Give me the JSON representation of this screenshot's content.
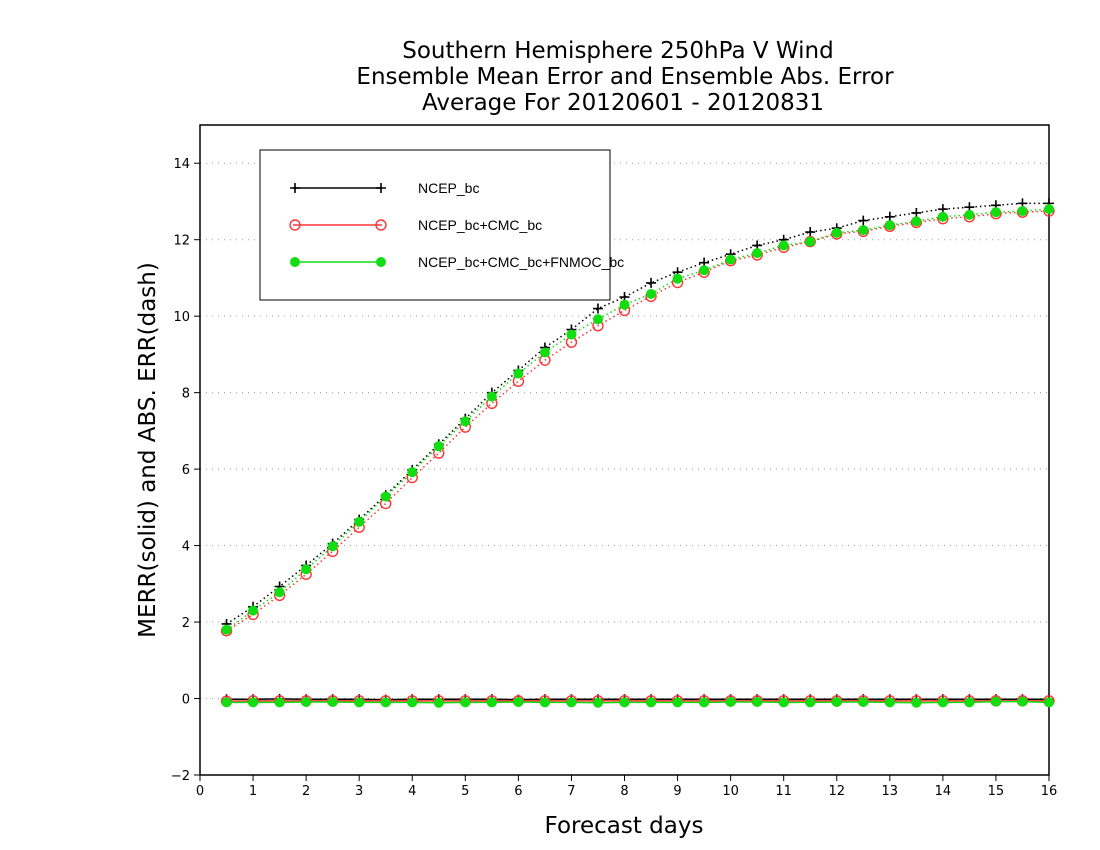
{
  "chart_data": {
    "type": "line",
    "title_lines": [
      "Southern Hemisphere 250hPa V Wind",
      "Ensemble Mean Error and Ensemble Abs. Error",
      "Average For 20120601 - 20120831"
    ],
    "xlabel": "Forecast days",
    "ylabel": "MERR(solid) and ABS. ERR(dash)",
    "xlim": [
      0,
      16
    ],
    "ylim": [
      -2,
      15
    ],
    "xticks": [
      0,
      1,
      2,
      3,
      4,
      5,
      6,
      7,
      8,
      9,
      10,
      11,
      12,
      13,
      14,
      15,
      16
    ],
    "yticks": [
      -2,
      0,
      2,
      4,
      6,
      8,
      10,
      12,
      14
    ],
    "grid": "horizontal dotted",
    "legend_position": "top-left",
    "x": [
      0.5,
      1,
      1.5,
      2,
      2.5,
      3,
      3.5,
      4,
      4.5,
      5,
      5.5,
      6,
      6.5,
      7,
      7.5,
      8,
      8.5,
      9,
      9.5,
      10,
      10.5,
      11,
      11.5,
      12,
      12.5,
      13,
      13.5,
      14,
      14.5,
      15,
      15.5,
      16
    ],
    "series": [
      {
        "name": "NCEP_bc",
        "color": "#000000",
        "marker": "plus",
        "abs_err": [
          1.95,
          2.4,
          2.93,
          3.48,
          4.05,
          4.68,
          5.32,
          5.98,
          6.65,
          7.32,
          8.0,
          8.58,
          9.18,
          9.65,
          10.2,
          10.5,
          10.87,
          11.15,
          11.4,
          11.62,
          11.85,
          12.0,
          12.2,
          12.3,
          12.5,
          12.6,
          12.7,
          12.8,
          12.85,
          12.9,
          12.95,
          12.95
        ],
        "mean_err": [
          -0.02,
          -0.02,
          -0.01,
          -0.02,
          -0.02,
          -0.02,
          -0.03,
          -0.02,
          -0.02,
          -0.02,
          -0.02,
          -0.03,
          -0.02,
          -0.02,
          -0.02,
          -0.02,
          -0.02,
          -0.02,
          -0.02,
          -0.02,
          -0.02,
          -0.02,
          -0.02,
          -0.02,
          -0.02,
          -0.02,
          -0.02,
          -0.02,
          -0.02,
          -0.02,
          -0.02,
          -0.02
        ]
      },
      {
        "name": "NCEP_bc+CMC_bc",
        "color": "#ff3333",
        "marker": "open-circle",
        "abs_err": [
          1.77,
          2.2,
          2.7,
          3.25,
          3.85,
          4.48,
          5.1,
          5.78,
          6.42,
          7.1,
          7.72,
          8.3,
          8.85,
          9.32,
          9.75,
          10.15,
          10.52,
          10.88,
          11.15,
          11.45,
          11.6,
          11.8,
          11.95,
          12.15,
          12.22,
          12.35,
          12.45,
          12.55,
          12.6,
          12.68,
          12.72,
          12.75
        ],
        "mean_err": [
          -0.07,
          -0.06,
          -0.06,
          -0.06,
          -0.06,
          -0.06,
          -0.06,
          -0.06,
          -0.06,
          -0.06,
          -0.06,
          -0.06,
          -0.06,
          -0.06,
          -0.06,
          -0.06,
          -0.06,
          -0.06,
          -0.06,
          -0.06,
          -0.06,
          -0.06,
          -0.06,
          -0.06,
          -0.06,
          -0.06,
          -0.06,
          -0.06,
          -0.06,
          -0.06,
          -0.06,
          -0.06
        ]
      },
      {
        "name": "NCEP_bc+CMC_bc+FNMOC_bc",
        "color": "#11dd11",
        "marker": "filled-circle",
        "abs_err": [
          1.8,
          2.3,
          2.78,
          3.38,
          3.98,
          4.62,
          5.28,
          5.92,
          6.6,
          7.25,
          7.9,
          8.5,
          9.05,
          9.52,
          9.92,
          10.3,
          10.58,
          10.98,
          11.2,
          11.48,
          11.65,
          11.85,
          11.95,
          12.18,
          12.25,
          12.38,
          12.48,
          12.6,
          12.65,
          12.72,
          12.75,
          12.8
        ],
        "mean_err": [
          -0.1,
          -0.1,
          -0.1,
          -0.09,
          -0.09,
          -0.1,
          -0.1,
          -0.1,
          -0.11,
          -0.1,
          -0.1,
          -0.09,
          -0.1,
          -0.1,
          -0.11,
          -0.1,
          -0.1,
          -0.1,
          -0.1,
          -0.09,
          -0.09,
          -0.1,
          -0.1,
          -0.09,
          -0.09,
          -0.1,
          -0.11,
          -0.1,
          -0.1,
          -0.08,
          -0.08,
          -0.1
        ]
      }
    ]
  }
}
